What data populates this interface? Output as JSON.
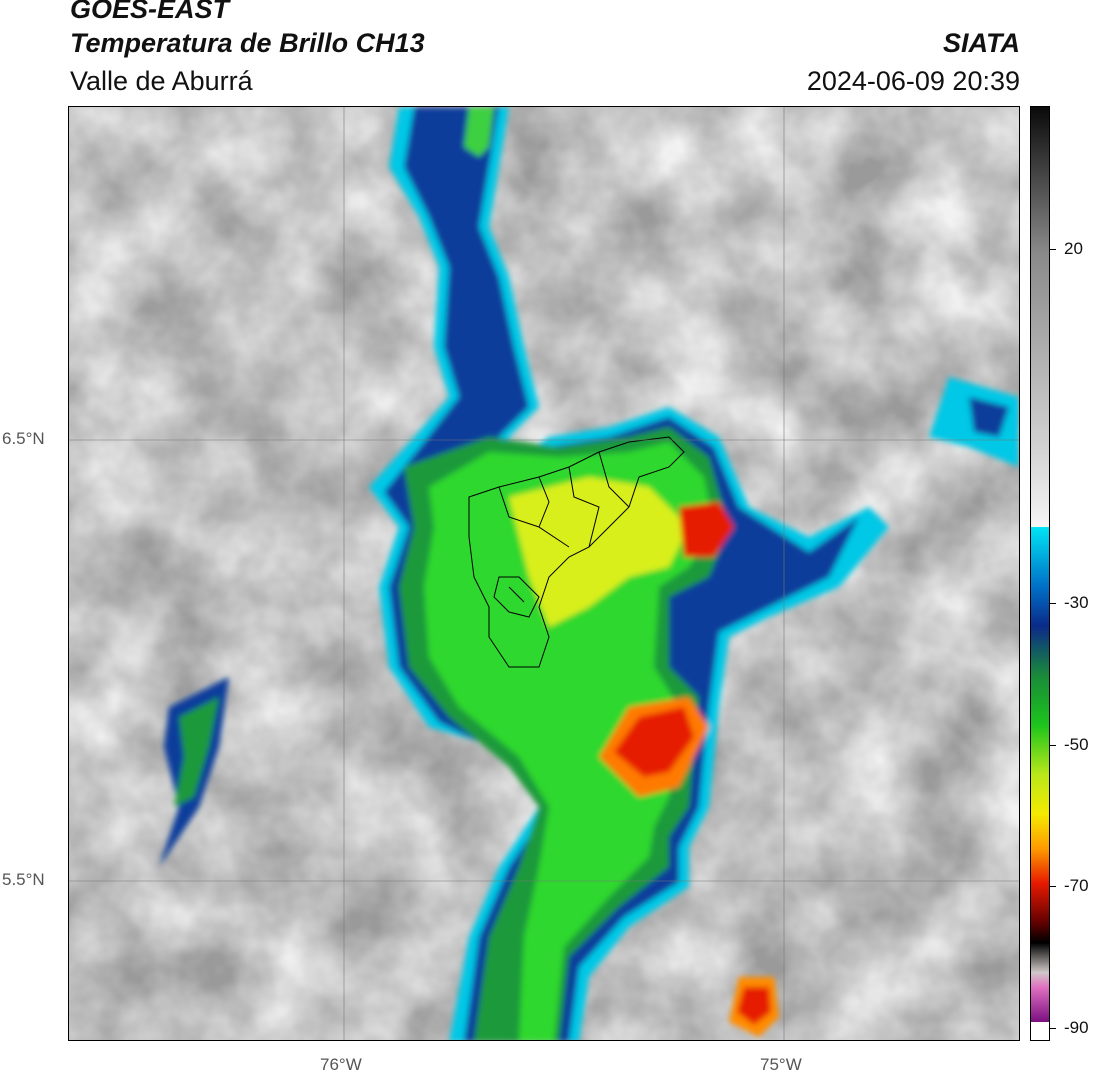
{
  "header": {
    "satellite": "GOES-EAST",
    "product": "Temperatura de Brillo CH13",
    "region": "Valle de Aburrá",
    "org": "SIATA",
    "datetime": "2024-06-09 20:39"
  },
  "map": {
    "lat_labels": [
      "6.5°N",
      "5.5°N"
    ],
    "lon_labels": [
      "76°W",
      "75°W"
    ]
  },
  "colorbar": {
    "tick_labels": [
      "20",
      "-30",
      "-50",
      "-70",
      "-90"
    ],
    "tick_values": [
      20,
      -30,
      -50,
      -70,
      -90
    ],
    "colors": {
      "warm_gray_dark": "#7a7a7a",
      "light_gray": "#d9d9d9",
      "cyan": "#00c8e6",
      "blue": "#0b3e9b",
      "green": "#1cc41c",
      "yellow": "#f5ea00",
      "orange": "#ff8c00",
      "red": "#e61a00",
      "black": "#000000",
      "magenta": "#b0309a"
    }
  }
}
